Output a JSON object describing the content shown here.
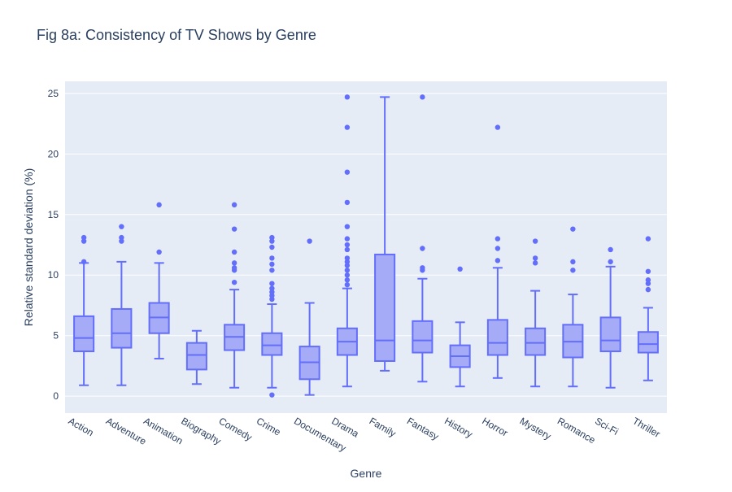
{
  "chart_data": {
    "type": "box",
    "title": "Fig 8a: Consistency of TV Shows by Genre",
    "xlabel": "Genre",
    "ylabel": "Relative standard deviation (%)",
    "ylim": [
      -1.4,
      26
    ],
    "yticks": [
      0,
      5,
      10,
      15,
      20,
      25
    ],
    "grid": true,
    "colors": {
      "box_fill": "#a6abf7",
      "box_line": "#636efa",
      "plot_bg": "#e5ecf6",
      "grid": "#ffffff"
    },
    "categories": [
      "Action",
      "Adventure",
      "Animation",
      "Biography",
      "Comedy",
      "Crime",
      "Documentary",
      "Drama",
      "Family",
      "Fantasy",
      "History",
      "Horror",
      "Mystery",
      "Romance",
      "Sci-Fi",
      "Thriller"
    ],
    "boxes": [
      {
        "q1": 3.7,
        "median": 4.8,
        "q3": 6.6,
        "lower_fence": 0.9,
        "upper_fence": 11.0,
        "outliers": [
          11.1,
          12.8,
          13.1
        ]
      },
      {
        "q1": 4.0,
        "median": 5.2,
        "q3": 7.2,
        "lower_fence": 0.9,
        "upper_fence": 11.1,
        "outliers": [
          12.8,
          13.1,
          14.0
        ]
      },
      {
        "q1": 5.2,
        "median": 6.5,
        "q3": 7.7,
        "lower_fence": 3.1,
        "upper_fence": 11.0,
        "outliers": [
          11.9,
          15.8
        ]
      },
      {
        "q1": 2.2,
        "median": 3.4,
        "q3": 4.4,
        "lower_fence": 1.0,
        "upper_fence": 5.4,
        "outliers": []
      },
      {
        "q1": 3.8,
        "median": 4.9,
        "q3": 5.9,
        "lower_fence": 0.7,
        "upper_fence": 8.8,
        "outliers": [
          9.4,
          10.4,
          10.6,
          11.0,
          11.9,
          13.8,
          15.8
        ]
      },
      {
        "q1": 3.4,
        "median": 4.2,
        "q3": 5.2,
        "lower_fence": 0.7,
        "upper_fence": 7.6,
        "outliers": [
          0.1,
          8.0,
          8.3,
          8.6,
          8.9,
          9.3,
          10.4,
          10.9,
          11.4,
          12.3,
          12.8,
          13.1
        ]
      },
      {
        "q1": 1.4,
        "median": 2.8,
        "q3": 4.1,
        "lower_fence": 0.1,
        "upper_fence": 7.7,
        "outliers": [
          12.8
        ]
      },
      {
        "q1": 3.4,
        "median": 4.5,
        "q3": 5.6,
        "lower_fence": 0.8,
        "upper_fence": 8.9,
        "outliers": [
          9.2,
          9.6,
          10.0,
          10.4,
          10.8,
          11.1,
          11.4,
          12.1,
          12.5,
          13.0,
          14.0,
          16.0,
          18.5,
          22.2,
          24.7
        ]
      },
      {
        "q1": 2.9,
        "median": 4.6,
        "q3": 11.7,
        "lower_fence": 2.1,
        "upper_fence": 24.7,
        "outliers": []
      },
      {
        "q1": 3.6,
        "median": 4.6,
        "q3": 6.2,
        "lower_fence": 1.2,
        "upper_fence": 9.7,
        "outliers": [
          10.4,
          10.6,
          12.2,
          24.7
        ]
      },
      {
        "q1": 2.4,
        "median": 3.3,
        "q3": 4.2,
        "lower_fence": 0.8,
        "upper_fence": 6.1,
        "outliers": [
          10.5
        ]
      },
      {
        "q1": 3.4,
        "median": 4.4,
        "q3": 6.3,
        "lower_fence": 1.5,
        "upper_fence": 10.6,
        "outliers": [
          11.2,
          12.2,
          13.0,
          22.2
        ]
      },
      {
        "q1": 3.4,
        "median": 4.4,
        "q3": 5.6,
        "lower_fence": 0.8,
        "upper_fence": 8.7,
        "outliers": [
          11.0,
          11.4,
          12.8
        ]
      },
      {
        "q1": 3.2,
        "median": 4.5,
        "q3": 5.9,
        "lower_fence": 0.8,
        "upper_fence": 8.4,
        "outliers": [
          10.4,
          11.1,
          13.8
        ]
      },
      {
        "q1": 3.7,
        "median": 4.6,
        "q3": 6.5,
        "lower_fence": 0.7,
        "upper_fence": 10.7,
        "outliers": [
          11.1,
          12.1
        ]
      },
      {
        "q1": 3.6,
        "median": 4.3,
        "q3": 5.3,
        "lower_fence": 1.3,
        "upper_fence": 7.3,
        "outliers": [
          8.8,
          9.3,
          9.6,
          10.3,
          13.0
        ]
      }
    ]
  }
}
